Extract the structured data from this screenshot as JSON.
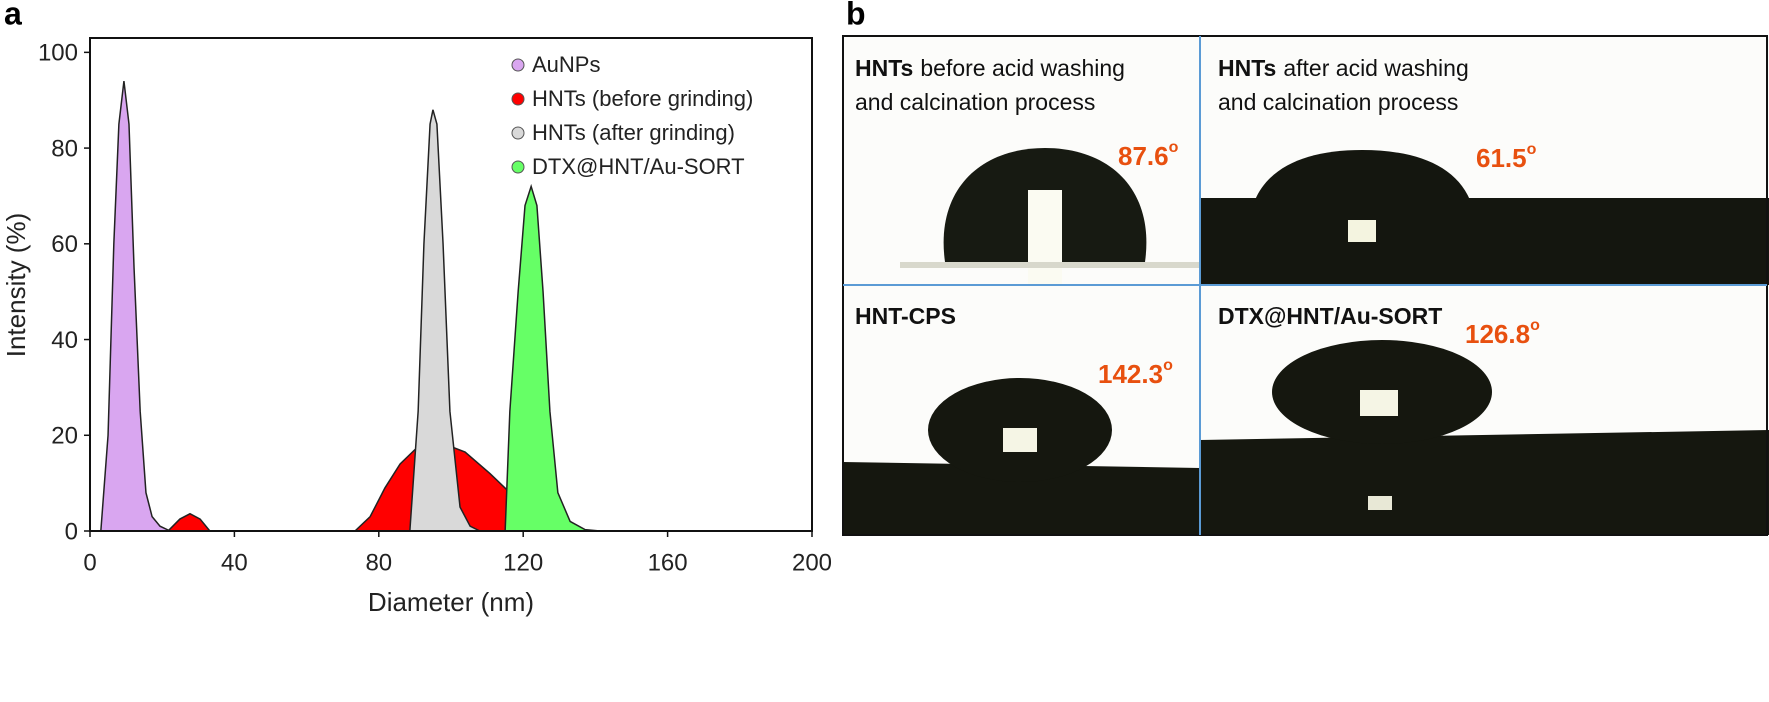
{
  "panel_labels": [
    "a",
    "b"
  ],
  "chart_data": {
    "type": "area",
    "xlabel": "Diameter (nm)",
    "ylabel": "Intensity (%)",
    "xlim": [
      0,
      200
    ],
    "xticks": [
      0,
      40,
      80,
      120,
      160,
      200
    ],
    "ylim": [
      0,
      103
    ],
    "yticks": [
      0,
      20,
      40,
      60,
      80,
      100
    ],
    "legend": "upper right",
    "series": [
      {
        "name": "AuNPs",
        "color": "#d9a6f0",
        "x": [
          3,
          5,
          6.6,
          8,
          9.4,
          10.8,
          12.2,
          13.9,
          15.5,
          17.2,
          19.4,
          22.2
        ],
        "values": [
          0,
          20,
          60,
          85,
          94,
          85,
          55,
          25,
          8,
          3,
          1,
          0
        ]
      },
      {
        "name": "HNTs (before grinding)",
        "color": "#ff0000",
        "x": [
          0,
          21.6,
          24.9,
          27.7,
          30.5,
          33.2,
          73.4,
          77.6,
          81.7,
          85.9,
          90,
          97,
          103.9,
          110.8,
          117.7,
          124.7,
          133,
          138.5,
          200
        ],
        "values": [
          0,
          0,
          2.5,
          3.6,
          2.5,
          0,
          0,
          3,
          9,
          14,
          17,
          18.5,
          16.5,
          12,
          7,
          3,
          0.5,
          0,
          0
        ]
      },
      {
        "name": "HNTs (after grinding)",
        "color": "#d9d9d9",
        "x": [
          88.6,
          90.9,
          92.5,
          94.2,
          95,
          96.1,
          97.8,
          99.7,
          102.5,
          105.3,
          108
        ],
        "values": [
          0,
          25,
          60,
          85,
          88,
          85,
          60,
          25,
          5,
          1,
          0
        ]
      },
      {
        "name": "DTX@HNT/Au-SORT",
        "color": "#66ff66",
        "x": [
          115,
          116.3,
          118.6,
          120.5,
          122.2,
          123.8,
          125.5,
          127.4,
          129.6,
          133,
          137.1,
          141.3
        ],
        "values": [
          0,
          25,
          50,
          68,
          72,
          68,
          50,
          25,
          8,
          2,
          0.3,
          0
        ]
      }
    ]
  },
  "photos": [
    {
      "bold": "HNTs",
      "lines": [
        "before acid washing",
        "and calcination process"
      ],
      "angle": "87.6",
      "unit": "o"
    },
    {
      "bold": "HNTs",
      "lines": [
        "after acid washing",
        "and calcination process"
      ],
      "angle": "61.5",
      "unit": "o"
    },
    {
      "bold": "HNT-CPS",
      "angle": "142.3",
      "unit": "o"
    },
    {
      "bold": "DTX@HNT/Au-SORT",
      "angle": "126.8",
      "unit": "o"
    }
  ]
}
